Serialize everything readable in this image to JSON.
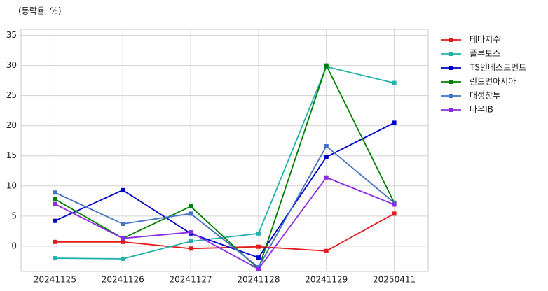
{
  "chart_data": {
    "type": "line",
    "title": "(등락률, %)",
    "categories": [
      "20241125",
      "20241126",
      "20241127",
      "20241128",
      "20241129",
      "20250411"
    ],
    "series": [
      {
        "name": "테마지수",
        "color": "#e31a1c",
        "values": [
          0.7,
          0.7,
          -0.4,
          -0.1,
          -0.8,
          5.4
        ]
      },
      {
        "name": "플루토스",
        "color": "#20b2aa",
        "values": [
          -2.0,
          -2.1,
          0.8,
          2.1,
          29.8,
          27.1
        ]
      },
      {
        "name": "TS인베스트먼트",
        "color": "#0000cd",
        "values": [
          4.2,
          9.3,
          2.1,
          -1.9,
          14.8,
          20.5
        ]
      },
      {
        "name": "린드먼아시아",
        "color": "#008000",
        "values": [
          7.8,
          1.3,
          6.6,
          -3.8,
          30.0,
          7.2
        ]
      },
      {
        "name": "대성창투",
        "color": "#4472c4",
        "values": [
          8.9,
          3.7,
          5.4,
          -3.5,
          16.6,
          7.2
        ]
      },
      {
        "name": "나우IB",
        "color": "#8a2be2",
        "values": [
          7.0,
          1.3,
          2.3,
          -3.8,
          11.4,
          6.9
        ]
      }
    ],
    "ylim": [
      -4.2,
      36
    ],
    "yticks": [
      0,
      5,
      10,
      15,
      20,
      25,
      30,
      35
    ],
    "grid": true,
    "legend": "outside-right"
  }
}
